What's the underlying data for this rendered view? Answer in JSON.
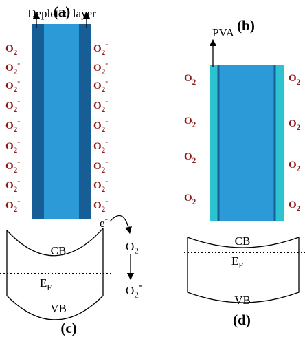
{
  "panels": {
    "a": {
      "label": "(a)",
      "annotation": "Depleted layer",
      "left_species": [
        {
          "base": "O",
          "sub": "2"
        },
        {
          "base": "O",
          "sub": "2",
          "sup": "-"
        },
        {
          "base": "O",
          "sub": "2",
          "sup": "-"
        },
        {
          "base": "O",
          "sub": "2",
          "sup": "-"
        },
        {
          "base": "O",
          "sub": "2",
          "sup": "-"
        },
        {
          "base": "O",
          "sub": "2",
          "sup": "-"
        },
        {
          "base": "O",
          "sub": "2",
          "sup": "-"
        },
        {
          "base": "O",
          "sub": "2",
          "sup": "-"
        },
        {
          "base": "O",
          "sub": "2",
          "sup": "-"
        }
      ],
      "right_species": [
        {
          "base": "O",
          "sub": "2",
          "sup": "-"
        },
        {
          "base": "O",
          "sub": "2",
          "sup": "-"
        },
        {
          "base": "O",
          "sub": "2",
          "sup": "-"
        },
        {
          "base": "O",
          "sub": "2",
          "sup": "-"
        },
        {
          "base": "O",
          "sub": "2",
          "sup": "-"
        },
        {
          "base": "O",
          "sub": "2",
          "sup": "-"
        },
        {
          "base": "O",
          "sub": "2",
          "sup": "-"
        },
        {
          "base": "O",
          "sub": "2",
          "sup": "-"
        },
        {
          "base": "O",
          "sub": "2",
          "sup": "-"
        }
      ]
    },
    "b": {
      "label": "(b)",
      "annotation": "PVA",
      "left_species": [
        {
          "base": "O",
          "sub": "2"
        },
        {
          "base": "O",
          "sub": "2"
        },
        {
          "base": "O",
          "sub": "2"
        },
        {
          "base": "O",
          "sub": "2"
        }
      ],
      "right_species": [
        {
          "base": "O",
          "sub": "2"
        },
        {
          "base": "O",
          "sub": "2"
        },
        {
          "base": "O",
          "sub": "2"
        },
        {
          "base": "O",
          "sub": "2"
        }
      ]
    },
    "c": {
      "label": "(c)",
      "conduction_band": "CB",
      "valence_band": "VB",
      "fermi_level": {
        "base": "E",
        "sub": "F"
      },
      "electron": {
        "base": "e",
        "sup": "-"
      },
      "reactant": {
        "base": "O",
        "sub": "2"
      },
      "product": {
        "base": "O",
        "sub": "2",
        "sup": "-"
      }
    },
    "d": {
      "label": "(d)",
      "conduction_band": "CB",
      "valence_band": "VB",
      "fermi_level": {
        "base": "E",
        "sub": "F"
      }
    }
  }
}
